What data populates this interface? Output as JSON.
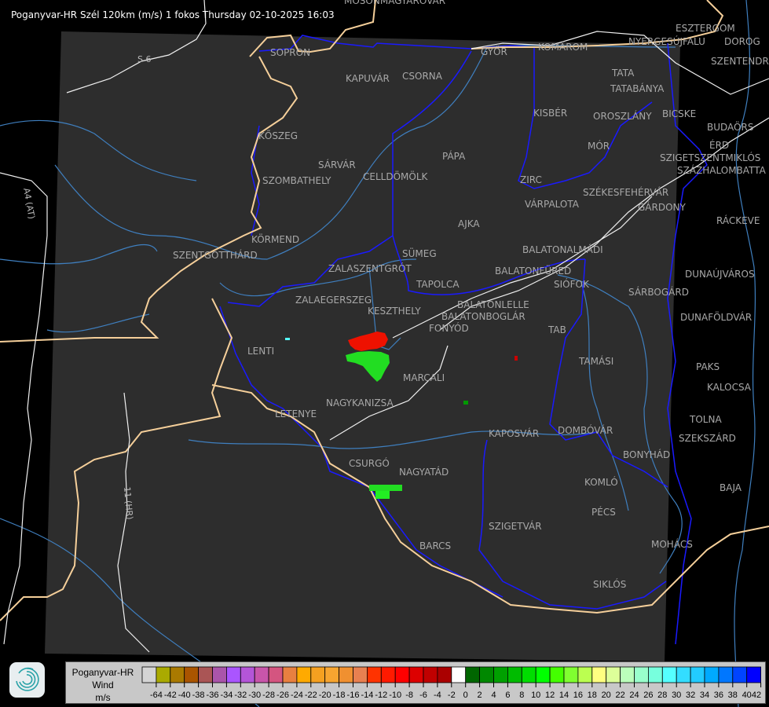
{
  "header": {
    "title": "Poganyvar-HR Szél 120km (m/s) 1 fokos Thursday 02-10-2025 16:03"
  },
  "map": {
    "background_color": "#2d2d2d",
    "cities": [
      "MOSONMAGYARÓVÁR",
      "SOPRON",
      "KAPUVÁR",
      "CSORNA",
      "GYŐR",
      "KOMÁROM",
      "ESZTERGOM",
      "NYERGESÚJFALU",
      "DOROG",
      "SZENTENDRE",
      "TATA",
      "TATABÁNYA",
      "KISBÉR",
      "OROSZLÁNY",
      "BICSKE",
      "BUDAÖRS",
      "MÓR",
      "ÉRD",
      "SZIGETSZENTMIKLÓS",
      "SZÁZHALOMBATTA",
      "ZIRC",
      "VÁRPALOTA",
      "SZÉKESFEHÉRVÁR",
      "GÁRDONY",
      "RÁCKEVE",
      "PÁPA",
      "AJKA",
      "KŐSZEG",
      "SÁRVÁR",
      "SZOMBATHELY",
      "CELLDÖMÖLK",
      "KÖRMEND",
      "SZENTGOTTHÁRD",
      "SÜMEG",
      "ZALASZENTGRÓT",
      "TAPOLCA",
      "BALATONALMÁDI",
      "BALATONFÜRED",
      "SIÓFOK",
      "ZALAEGERSZEG",
      "KESZTHELY",
      "BALATONLELLE",
      "BALATONBOGLÁR",
      "FONYÓD",
      "TAB",
      "TAMÁSI",
      "LENTI",
      "MARCALI",
      "NAGYKANIZSA",
      "LETENYE",
      "KAPOSVÁR",
      "DOMBÓVÁR",
      "BONYHÁD",
      "SZEKSZÁRD",
      "TOLNA",
      "PAKS",
      "KALOCSA",
      "DUNAÚJVÁROS",
      "DUNAFÖLDVÁR",
      "SÁRBOGÁRD",
      "CSURGÓ",
      "NAGYATÁD",
      "KOMLÓ",
      "PÉCS",
      "SZIGETVÁR",
      "BAJA",
      "MOHÁCS",
      "BARCS",
      "SIKLÓS"
    ],
    "road_labels": [
      "S 6",
      "A4 (AT)",
      "11 (HR)"
    ]
  },
  "legend": {
    "logo": "swirl-logo",
    "name": "Poganyvar-HR",
    "quantity": "Wind",
    "unit": "m/s",
    "colors": [
      "#d4d4d4",
      "#aaaa00",
      "#aa7a00",
      "#aa5500",
      "#aa5555",
      "#aa55aa",
      "#aa55ff",
      "#b455d8",
      "#c855aa",
      "#d45580",
      "#e88040",
      "#ffaa00",
      "#f5a020",
      "#f7a530",
      "#f09030",
      "#e88050",
      "#ff3300",
      "#ff1a00",
      "#ff0000",
      "#dd0000",
      "#c00000",
      "#aa0000",
      "#ffffff",
      "#006600",
      "#008800",
      "#00a000",
      "#00bb00",
      "#00dd00",
      "#00ff00",
      "#44ff00",
      "#80ff30",
      "#bbff50",
      "#ffff80",
      "#ddff99",
      "#bbffbb",
      "#99ffcc",
      "#77ffdd",
      "#55ffff",
      "#33ddff",
      "#22ccff",
      "#00aaff",
      "#0077ff",
      "#0044ff",
      "#0000ff"
    ],
    "labels": [
      "-64",
      "-42",
      "-40",
      "-38",
      "-36",
      "-34",
      "-32",
      "-30",
      "-28",
      "-26",
      "-24",
      "-22",
      "-20",
      "-18",
      "-16",
      "-14",
      "-12",
      "-10",
      "-8",
      "-6",
      "-4",
      "-2",
      "0",
      "2",
      "4",
      "6",
      "8",
      "10",
      "12",
      "14",
      "16",
      "18",
      "20",
      "22",
      "24",
      "26",
      "28",
      "30",
      "32",
      "34",
      "36",
      "38",
      "40",
      "42"
    ]
  }
}
